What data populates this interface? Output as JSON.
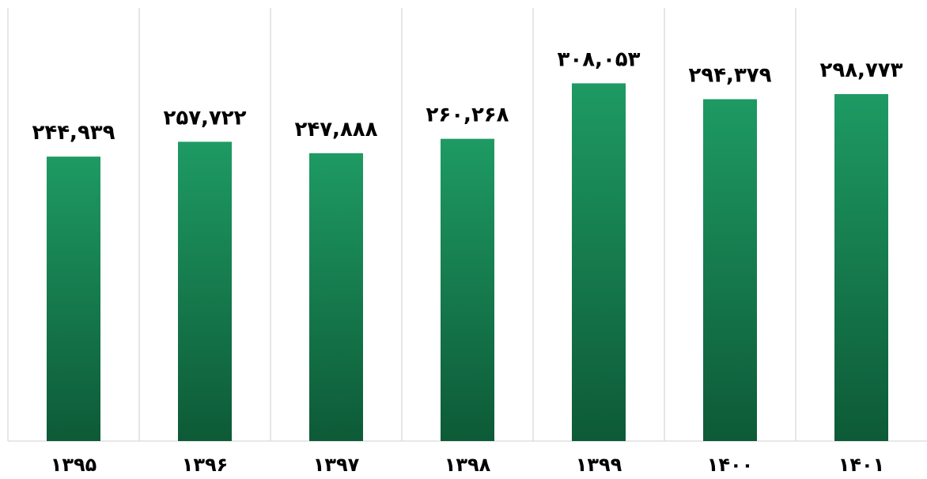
{
  "chart_data": {
    "type": "bar",
    "categories": [
      "۱۳۹۵",
      "۱۳۹۶",
      "۱۳۹۷",
      "۱۳۹۸",
      "۱۳۹۹",
      "۱۴۰۰",
      "۱۴۰۱"
    ],
    "values": [
      244939,
      257722,
      247888,
      260268,
      308053,
      294379,
      298773
    ],
    "data_labels": [
      "۲۴۴,۹۳۹",
      "۲۵۷,۷۲۲",
      "۲۴۷,۸۸۸",
      "۲۶۰,۲۶۸",
      "۳۰۸,۰۵۳",
      "۲۹۴,۳۷۹",
      "۲۹۸,۷۷۳"
    ],
    "title": "",
    "xlabel": "",
    "ylabel": "",
    "ylim": [
      0,
      373000
    ],
    "grid": "vertical-category-separators",
    "legend": "none",
    "colors": {
      "bar_top": "#1e9a63",
      "bar_bottom": "#0d5a37",
      "grid": "#d9d9d9",
      "text": "#000000"
    }
  }
}
